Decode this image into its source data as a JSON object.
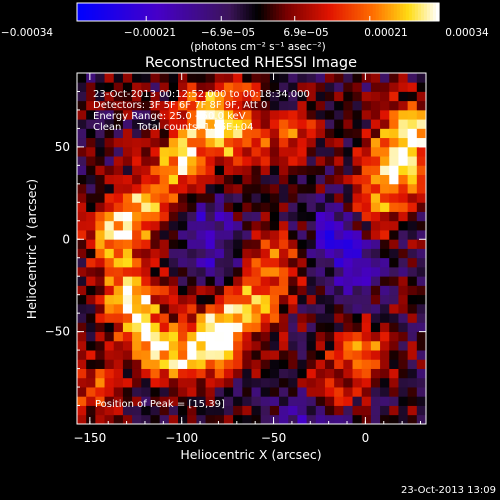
{
  "chart_data": {
    "type": "heatmap",
    "title": "Reconstructed RHESSI Image",
    "xlabel": "Heliocentric X (arcsec)",
    "ylabel": "Heliocentric Y (arcsec)",
    "xlim": [
      -157,
      33
    ],
    "ylim": [
      -100,
      90
    ],
    "x_ticks": [
      -150,
      -100,
      -50,
      0
    ],
    "y_ticks": [
      -50,
      0,
      50
    ],
    "x_tick_labels": [
      "−150",
      "−100",
      "−50",
      "0"
    ],
    "y_tick_labels": [
      "−50",
      "0",
      "50"
    ],
    "colorbar": {
      "range": [
        -0.00034,
        0.00034
      ],
      "ticks": [
        -0.00034,
        -0.00021,
        -6.9e-05,
        6.9e-05,
        0.00021,
        0.00034
      ],
      "tick_labels": [
        "−0.00034",
        "−0.00021",
        "−6.9e−05",
        "6.9e−05",
        "0.00021",
        "0.00034"
      ],
      "unit_label": "(photons cm⁻² s⁻¹ asec⁻²)"
    },
    "annotations": [
      "23-Oct-2013 00:12:52.000 to 00:18:34.000",
      "Detectors: 3F 5F 6F 7F 8F 9F, Att 0",
      "Energy Range: 25.0 - 50.0 keV",
      "Clean     Total counts: 1.96E+04"
    ],
    "peak_label": "Position of Peak = [15,39]",
    "emission_sources": [
      {
        "x": -135,
        "y": 2,
        "level": 0.85
      },
      {
        "x": -118,
        "y": 20,
        "level": 0.75
      },
      {
        "x": -100,
        "y": 42,
        "level": 0.8
      },
      {
        "x": -88,
        "y": 68,
        "level": 0.8
      },
      {
        "x": -70,
        "y": 55,
        "level": 0.65
      },
      {
        "x": -128,
        "y": -30,
        "level": 0.9
      },
      {
        "x": -118,
        "y": -55,
        "level": 0.8
      },
      {
        "x": -95,
        "y": -65,
        "level": 0.7
      },
      {
        "x": -80,
        "y": -50,
        "level": 0.95
      },
      {
        "x": -60,
        "y": -35,
        "level": 0.7
      },
      {
        "x": -50,
        "y": -12,
        "level": 0.55
      },
      {
        "x": -40,
        "y": 60,
        "level": 0.6
      },
      {
        "x": 15,
        "y": 39,
        "level": 1.0
      },
      {
        "x": 25,
        "y": 60,
        "level": 0.85
      },
      {
        "x": 5,
        "y": 15,
        "level": 0.55
      },
      {
        "x": 0,
        "y": -60,
        "level": 0.55
      },
      {
        "x": -20,
        "y": -80,
        "level": 0.45
      },
      {
        "x": -150,
        "y": -80,
        "level": 0.5
      },
      {
        "x": -60,
        "y": 80,
        "level": 0.5
      }
    ],
    "dim_sources": [
      {
        "x": -50,
        "y": 75,
        "level": -0.5
      },
      {
        "x": -15,
        "y": 5,
        "level": -0.6
      },
      {
        "x": -5,
        "y": -15,
        "level": -0.55
      },
      {
        "x": -30,
        "y": -95,
        "level": -0.5
      },
      {
        "x": -90,
        "y": 10,
        "level": -0.45
      },
      {
        "x": -80,
        "y": -10,
        "level": -0.4
      }
    ]
  },
  "footer_timestamp": "23-Oct-2013 13:09"
}
